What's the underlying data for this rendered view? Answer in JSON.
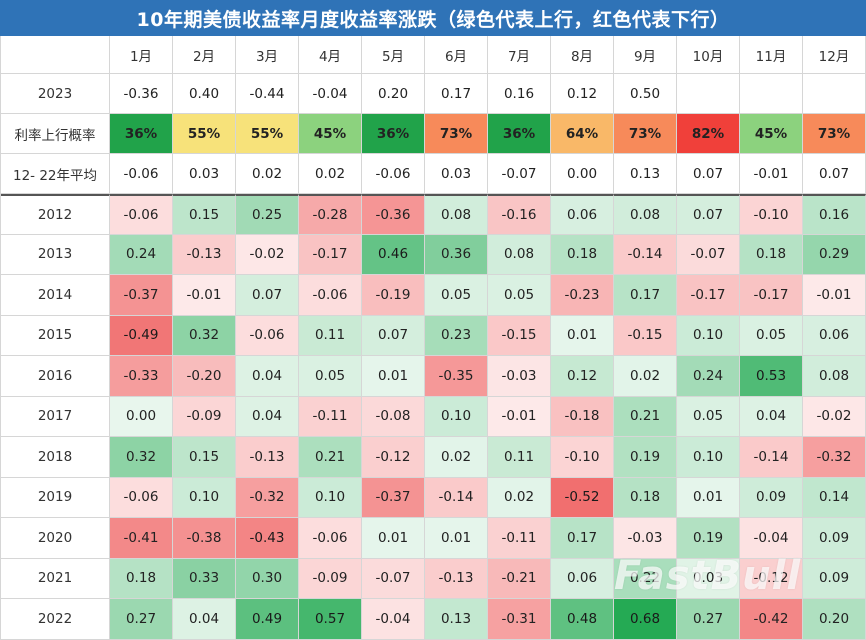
{
  "title": "10年期美债收益率月度收益率涨跌（绿色代表上行，红色代表下行）",
  "watermark": "FastBull",
  "chart_data": {
    "type": "heatmap",
    "title": "10年期美债收益率月度收益率涨跌（绿色代表上行，红色代表下行）",
    "columns": [
      "1月",
      "2月",
      "3月",
      "4月",
      "5月",
      "6月",
      "7月",
      "8月",
      "9月",
      "10月",
      "11月",
      "12月"
    ],
    "summary_rows": [
      {
        "label": "2023",
        "values": [
          -0.36,
          0.4,
          -0.44,
          -0.04,
          0.2,
          0.17,
          0.16,
          0.12,
          0.5,
          null,
          null,
          null
        ],
        "display": [
          "-0.36",
          "0.40",
          "-0.44",
          "-0.04",
          "0.20",
          "0.17",
          "0.16",
          "0.12",
          "0.50",
          "",
          "",
          ""
        ]
      },
      {
        "label": "利率上行概率",
        "values": [
          36,
          55,
          55,
          45,
          36,
          73,
          36,
          64,
          73,
          82,
          45,
          73
        ],
        "display": [
          "36%",
          "55%",
          "55%",
          "45%",
          "36%",
          "73%",
          "36%",
          "64%",
          "73%",
          "82%",
          "45%",
          "73%"
        ],
        "colors": [
          "#21a34a",
          "#f7e27a",
          "#f7e27a",
          "#8cd27e",
          "#21a34a",
          "#f78a5a",
          "#21a34a",
          "#f9b868",
          "#f78a5a",
          "#f0403a",
          "#8cd27e",
          "#f78a5a"
        ]
      },
      {
        "label": "12- 22年平均",
        "values": [
          -0.06,
          0.03,
          0.02,
          0.02,
          -0.06,
          0.03,
          -0.07,
          0.0,
          0.13,
          0.07,
          -0.01,
          0.07
        ],
        "display": [
          "-0.06",
          "0.03",
          "0.02",
          "0.02",
          "-0.06",
          "0.03",
          "-0.07",
          "0.00",
          "0.13",
          "0.07",
          "-0.01",
          "0.07"
        ]
      }
    ],
    "years": [
      {
        "label": "2012",
        "values": [
          "-0.06",
          "0.15",
          "0.25",
          "-0.28",
          "-0.36",
          "0.08",
          "-0.16",
          "0.06",
          "0.08",
          "0.07",
          "-0.10",
          "0.16"
        ]
      },
      {
        "label": "2013",
        "values": [
          "0.24",
          "-0.13",
          "-0.02",
          "-0.17",
          "0.46",
          "0.36",
          "0.08",
          "0.18",
          "-0.14",
          "-0.07",
          "0.18",
          "0.29"
        ]
      },
      {
        "label": "2014",
        "values": [
          "-0.37",
          "-0.01",
          "0.07",
          "-0.06",
          "-0.19",
          "0.05",
          "0.05",
          "-0.23",
          "0.17",
          "-0.17",
          "-0.17",
          "-0.01"
        ]
      },
      {
        "label": "2015",
        "values": [
          "-0.49",
          "0.32",
          "-0.06",
          "0.11",
          "0.07",
          "0.23",
          "-0.15",
          "0.01",
          "-0.15",
          "0.10",
          "0.05",
          "0.06"
        ]
      },
      {
        "label": "2016",
        "values": [
          "-0.33",
          "-0.20",
          "0.04",
          "0.05",
          "0.01",
          "-0.35",
          "-0.03",
          "0.12",
          "0.02",
          "0.24",
          "0.53",
          "0.08"
        ]
      },
      {
        "label": "2017",
        "values": [
          "0.00",
          "-0.09",
          "0.04",
          "-0.11",
          "-0.08",
          "0.10",
          "-0.01",
          "-0.18",
          "0.21",
          "0.05",
          "0.04",
          "-0.02"
        ]
      },
      {
        "label": "2018",
        "values": [
          "0.32",
          "0.15",
          "-0.13",
          "0.21",
          "-0.12",
          "0.02",
          "0.11",
          "-0.10",
          "0.19",
          "0.10",
          "-0.14",
          "-0.32"
        ]
      },
      {
        "label": "2019",
        "values": [
          "-0.06",
          "0.10",
          "-0.32",
          "0.10",
          "-0.37",
          "-0.14",
          "0.02",
          "-0.52",
          "0.18",
          "0.01",
          "0.09",
          "0.14"
        ]
      },
      {
        "label": "2020",
        "values": [
          "-0.41",
          "-0.38",
          "-0.43",
          "-0.06",
          "0.01",
          "0.01",
          "-0.11",
          "0.17",
          "-0.03",
          "0.19",
          "-0.04",
          "0.09"
        ]
      },
      {
        "label": "2021",
        "values": [
          "0.18",
          "0.33",
          "0.30",
          "-0.09",
          "-0.07",
          "-0.13",
          "-0.21",
          "0.06",
          "0.22",
          "0.03",
          "-0.12",
          "0.09"
        ]
      },
      {
        "label": "2022",
        "values": [
          "0.27",
          "0.04",
          "0.49",
          "0.57",
          "-0.04",
          "0.13",
          "-0.31",
          "0.48",
          "0.68",
          "0.27",
          "-0.42",
          "0.20"
        ]
      }
    ],
    "color_scale": {
      "positive": "#1aa64b",
      "negative": "#ec3f3f",
      "max_abs": 0.68
    }
  }
}
